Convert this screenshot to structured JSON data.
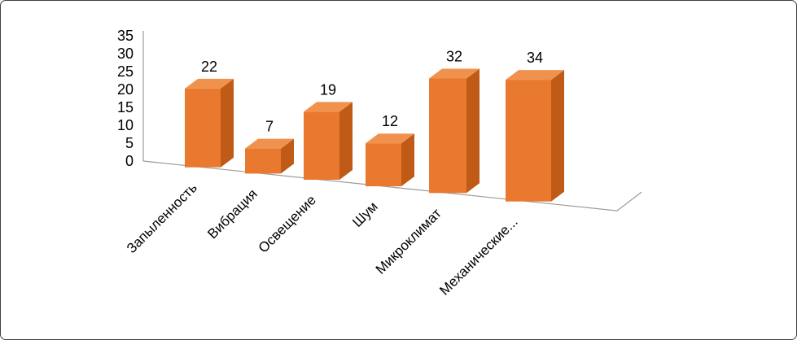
{
  "chart_data": {
    "type": "bar",
    "style": "3d-column",
    "title": "",
    "xlabel": "",
    "ylabel": "",
    "categories": [
      "Запыленность",
      "Вибрация",
      "Освещение",
      "Шум",
      "Микроклимат",
      "Механические..."
    ],
    "values": [
      22,
      7,
      19,
      12,
      32,
      34
    ],
    "ylim": [
      0,
      35
    ],
    "yticks": [
      0,
      5,
      10,
      15,
      20,
      25,
      30,
      35
    ],
    "grid": false,
    "legend": "none",
    "colors": {
      "bar_front": "#E8792E",
      "bar_side": "#BF5B17",
      "bar_top": "#F0924D",
      "axis_line": "#9c9c9c",
      "label_text": "#000000",
      "background": "#ffffff"
    }
  }
}
